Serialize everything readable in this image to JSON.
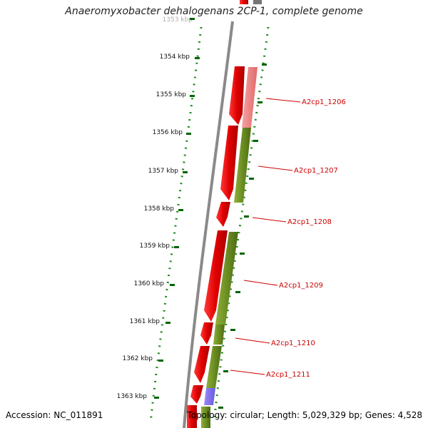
{
  "title": "Anaeromyxobacter dehalogenans 2CP-1, complete genome",
  "footer": {
    "accession": "Accession: NC_011891",
    "summary": "Topology: circular; Length: 5,029,329 bp; Genes: 4,528"
  },
  "axis": {
    "ticks": [
      "1353 kbp",
      "1354 kbp",
      "1355 kbp",
      "1356 kbp",
      "1357 kbp",
      "1358 kbp",
      "1359 kbp",
      "1360 kbp",
      "1361 kbp",
      "1362 kbp",
      "1363 kbp"
    ]
  },
  "genes": [
    {
      "name": "A2cp1_1206"
    },
    {
      "name": "A2cp1_1207"
    },
    {
      "name": "A2cp1_1208"
    },
    {
      "name": "A2cp1_1209"
    },
    {
      "name": "A2cp1_1210"
    },
    {
      "name": "A2cp1_1211"
    }
  ],
  "colors": {
    "cds": "#ff0000",
    "cds_light": "#f08080",
    "olive": "#6b8e23",
    "blue": "#7b68ee",
    "backbone": "#888888",
    "dots": "#228b22",
    "label": "#cc0000"
  }
}
